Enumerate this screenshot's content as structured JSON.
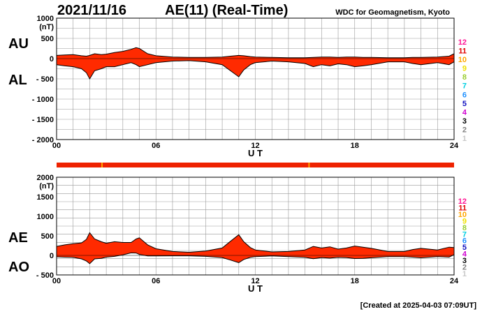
{
  "header": {
    "date": "2021/11/16",
    "index_title": "AE(11) (Real-Time)",
    "credit": "WDC for Geomagnetism, Kyoto"
  },
  "footer": {
    "created": "[Created at 2025-04-03 07:09UT]"
  },
  "labels": {
    "au": "AU",
    "al": "AL",
    "ae": "AE",
    "ao": "AO"
  },
  "legend": {
    "items": [
      {
        "label": "12",
        "color": "#ff1493"
      },
      {
        "label": "11",
        "color": "#e00000"
      },
      {
        "label": "10",
        "color": "#ffa500"
      },
      {
        "label": "9",
        "color": "#f0e000"
      },
      {
        "label": "8",
        "color": "#9acd32"
      },
      {
        "label": "7",
        "color": "#00cfe0"
      },
      {
        "label": "6",
        "color": "#1e90ff"
      },
      {
        "label": "5",
        "color": "#1010c0"
      },
      {
        "label": "4",
        "color": "#d000d0"
      },
      {
        "label": "3",
        "color": "#000000"
      },
      {
        "label": "2",
        "color": "#808080"
      },
      {
        "label": "1",
        "color": "#c8c8c8"
      }
    ]
  },
  "colors": {
    "fill": "#ff2a00",
    "outline": "#000000",
    "grid": "#999999",
    "status_bar": "#ee2200",
    "status_mark": "#ffa500"
  },
  "chart_data": [
    {
      "type": "area",
      "name": "AU/AL",
      "xlabel": "U T",
      "ylabel": "(nT)",
      "xlim": [
        0,
        24
      ],
      "ylim": [
        -2000,
        1000
      ],
      "xticks": [
        {
          "value": 0,
          "label": "00"
        },
        {
          "value": 6,
          "label": "06"
        },
        {
          "value": 12,
          "label": "12"
        },
        {
          "value": 18,
          "label": "18"
        },
        {
          "value": 24,
          "label": "24"
        }
      ],
      "yticks": [
        {
          "value": 1000,
          "label": "1000"
        },
        {
          "value": 500,
          "label": "500"
        },
        {
          "value": 0,
          "label": "0"
        },
        {
          "value": -500,
          "label": "- 500"
        },
        {
          "value": -1000,
          "label": "- 1000"
        },
        {
          "value": -1500,
          "label": "- 1500"
        },
        {
          "value": -2000,
          "label": "- 2000"
        }
      ],
      "grid": true,
      "x": [
        0,
        0.5,
        1,
        1.5,
        1.8,
        2.0,
        2.3,
        2.7,
        3.0,
        3.5,
        4.0,
        4.5,
        4.8,
        5.0,
        5.5,
        6.0,
        7,
        8,
        9,
        10,
        10.5,
        11.0,
        11.3,
        11.7,
        12,
        13,
        14,
        15,
        15.5,
        16,
        16.5,
        17,
        17.5,
        18,
        18.5,
        19,
        20,
        21,
        21.5,
        22,
        23,
        23.7,
        24
      ],
      "series": [
        {
          "key": "AU",
          "values": [
            80,
            90,
            100,
            70,
            60,
            80,
            120,
            100,
            110,
            150,
            180,
            230,
            270,
            250,
            120,
            70,
            40,
            30,
            30,
            40,
            60,
            80,
            70,
            50,
            40,
            30,
            20,
            20,
            30,
            40,
            40,
            30,
            40,
            40,
            30,
            30,
            20,
            20,
            30,
            30,
            40,
            60,
            120
          ]
        },
        {
          "key": "AL",
          "values": [
            -150,
            -180,
            -200,
            -250,
            -350,
            -500,
            -300,
            -250,
            -200,
            -200,
            -150,
            -100,
            -150,
            -200,
            -150,
            -100,
            -60,
            -50,
            -80,
            -150,
            -300,
            -450,
            -280,
            -150,
            -100,
            -60,
            -80,
            -120,
            -200,
            -150,
            -180,
            -130,
            -150,
            -200,
            -180,
            -150,
            -80,
            -80,
            -120,
            -150,
            -100,
            -150,
            -80
          ]
        }
      ]
    },
    {
      "type": "area",
      "name": "AE/AO",
      "xlabel": "U T",
      "ylabel": "(nT)",
      "xlim": [
        0,
        24
      ],
      "ylim": [
        -500,
        2000
      ],
      "xticks": [
        {
          "value": 0,
          "label": "00"
        },
        {
          "value": 6,
          "label": "06"
        },
        {
          "value": 12,
          "label": "12"
        },
        {
          "value": 18,
          "label": "18"
        },
        {
          "value": 24,
          "label": "24"
        }
      ],
      "yticks": [
        {
          "value": 2000,
          "label": "2000"
        },
        {
          "value": 1500,
          "label": "1500"
        },
        {
          "value": 1000,
          "label": "1000"
        },
        {
          "value": 500,
          "label": "500"
        },
        {
          "value": 0,
          "label": "0"
        },
        {
          "value": -500,
          "label": "- 500"
        }
      ],
      "grid": true,
      "x": [
        0,
        0.5,
        1,
        1.5,
        1.8,
        2.0,
        2.3,
        2.7,
        3.0,
        3.5,
        4.0,
        4.5,
        4.8,
        5.0,
        5.5,
        6.0,
        7,
        8,
        9,
        10,
        10.5,
        11.0,
        11.3,
        11.7,
        12,
        13,
        14,
        15,
        15.5,
        16,
        16.5,
        17,
        17.5,
        18,
        18.5,
        19,
        20,
        21,
        21.5,
        22,
        23,
        23.7,
        24
      ],
      "series": [
        {
          "key": "AE",
          "values": [
            230,
            270,
            300,
            320,
            410,
            580,
            420,
            350,
            310,
            350,
            330,
            330,
            420,
            450,
            270,
            170,
            100,
            80,
            110,
            190,
            360,
            530,
            350,
            200,
            140,
            90,
            100,
            140,
            230,
            190,
            220,
            160,
            190,
            240,
            210,
            180,
            100,
            100,
            150,
            180,
            140,
            210,
            200
          ]
        },
        {
          "key": "AO",
          "values": [
            -35,
            -45,
            -50,
            -90,
            -145,
            -210,
            -90,
            -75,
            -45,
            -25,
            15,
            65,
            60,
            25,
            -15,
            -15,
            -10,
            -10,
            -25,
            -55,
            -120,
            -185,
            -105,
            -50,
            -30,
            -15,
            -30,
            -50,
            -85,
            -55,
            -70,
            -50,
            -55,
            -80,
            -75,
            -60,
            -30,
            -30,
            -45,
            -60,
            -30,
            -45,
            20
          ]
        }
      ]
    }
  ]
}
